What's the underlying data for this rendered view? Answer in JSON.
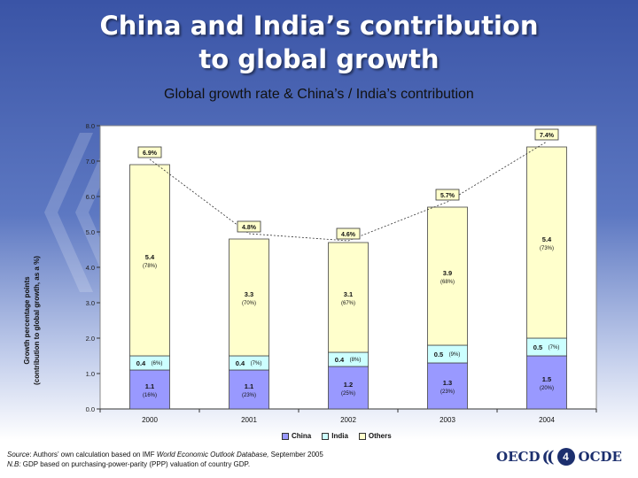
{
  "slide": {
    "title_line1": "China and India’s contribution",
    "title_line2": "to global growth",
    "page_number": "4",
    "logo_left": "OECD",
    "logo_right": "OCDE"
  },
  "footer": {
    "source_label": "Source",
    "source_text": ": Authors’ own calculation based on IMF ",
    "source_italic": "World Economic Outlook Database,",
    "source_tail": " September 2005",
    "nb_label": "N.B:",
    "nb_text": " GDP based on purchasing-power-parity (PPP) valuation of country GDP."
  },
  "chart_data": {
    "type": "bar",
    "stacked": true,
    "title": "Global growth rate & China’s / India’s contribution",
    "ylabel_line1": "Growth percentage points",
    "ylabel_line2": "(contribution to global growth, as a %)",
    "xlabel": "",
    "ylim": [
      0,
      8
    ],
    "yticks": [
      "0.0",
      "1.0",
      "2.0",
      "3.0",
      "4.0",
      "5.0",
      "6.0",
      "7.0",
      "8.0"
    ],
    "categories": [
      "2000",
      "2001",
      "2002",
      "2003",
      "2004"
    ],
    "series": [
      {
        "name": "China",
        "color": "#9999ff",
        "values": [
          1.1,
          1.1,
          1.2,
          1.3,
          1.5
        ],
        "labels": [
          "1.1",
          "1.1",
          "1.2",
          "1.3",
          "1.5"
        ],
        "shares": [
          "(16%)",
          "(23%)",
          "(25%)",
          "(23%)",
          "(20%)"
        ]
      },
      {
        "name": "India",
        "color": "#ccffff",
        "values": [
          0.4,
          0.4,
          0.4,
          0.5,
          0.5
        ],
        "labels": [
          "0.4",
          "0.4",
          "0.4",
          "0.5",
          "0.5"
        ],
        "shares": [
          "(6%)",
          "(7%)",
          "(8%)",
          "(9%)",
          "(7%)"
        ]
      },
      {
        "name": "Others",
        "color": "#ffffcc",
        "values": [
          5.4,
          3.3,
          3.1,
          3.9,
          5.4
        ],
        "labels": [
          "5.4",
          "3.3",
          "3.1",
          "3.9",
          "5.4"
        ],
        "shares": [
          "(78%)",
          "(70%)",
          "(67%)",
          "(68%)",
          "(73%)"
        ]
      }
    ],
    "totals": [
      6.9,
      4.8,
      4.6,
      5.7,
      7.4
    ],
    "total_labels": [
      "6.9%",
      "4.8%",
      "4.6%",
      "5.7%",
      "7.4%"
    ],
    "grid": false,
    "legend_position": "bottom"
  }
}
